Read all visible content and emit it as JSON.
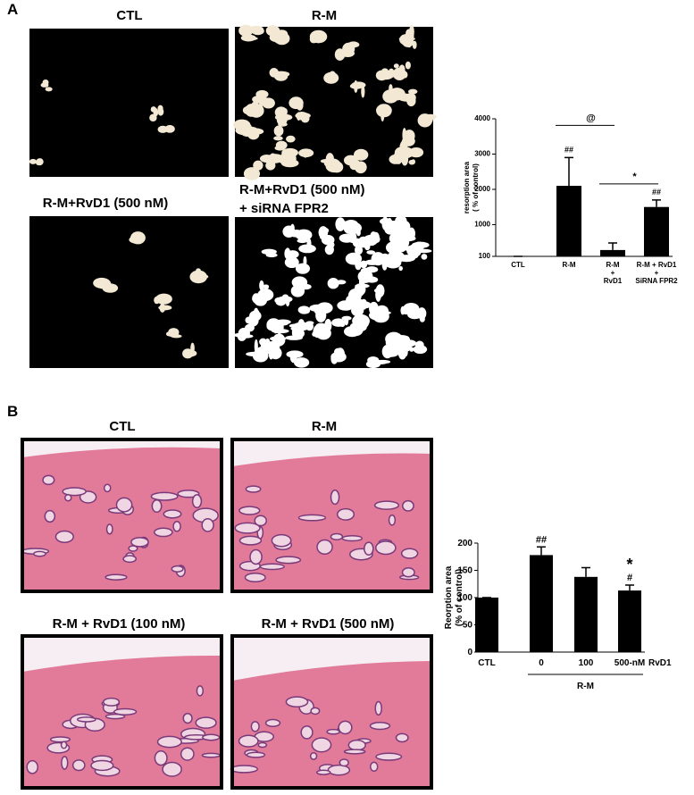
{
  "panels": {
    "A": {
      "label": "A",
      "images": [
        {
          "title": "CTL"
        },
        {
          "title": "R-M"
        },
        {
          "title": "R-M+RvD1 (500 nM)"
        },
        {
          "title": "R-M+RvD1 (500 nM)\n+ siRNA FPR2"
        }
      ]
    },
    "B": {
      "label": "B",
      "images": [
        {
          "title": "CTL"
        },
        {
          "title": "R-M"
        },
        {
          "title": "R-M + RvD1 (100 nM)"
        },
        {
          "title": "R-M + RvD1 (500 nM)"
        }
      ]
    }
  },
  "chart_data": [
    {
      "type": "bar",
      "y_label": "resorption area\n( % of control)",
      "categories": [
        "CTL",
        "R-M",
        "R-M\n+\nRvD1",
        "R-M + RvD1\n+\nSiRNA FPR2"
      ],
      "values": [
        100,
        2100,
        280,
        1500
      ],
      "errors": [
        0,
        800,
        200,
        200
      ],
      "color": "#000000",
      "ylim": [
        100,
        4000
      ],
      "yticks": [
        100,
        1000,
        2000,
        3000,
        4000
      ],
      "annotations": [
        {
          "text": "##",
          "category": 1
        },
        {
          "text": "##",
          "category": 3
        }
      ],
      "brackets": [
        {
          "text": "@",
          "from": 1,
          "to": 2
        },
        {
          "text": "*",
          "from": 2,
          "to": 3
        }
      ]
    },
    {
      "type": "bar",
      "y_label": "Reorption area\n(% of control)",
      "categories": [
        "CTL",
        "0",
        "100",
        "500-nM"
      ],
      "values": [
        100,
        178,
        138,
        113
      ],
      "errors": [
        0,
        15,
        17,
        10
      ],
      "color": "#000000",
      "ylim": [
        0,
        200
      ],
      "yticks": [
        0,
        50,
        100,
        150,
        200
      ],
      "annotations": [
        {
          "text": "##",
          "category": 1
        },
        {
          "text": "#",
          "category": 3
        },
        {
          "text": "*",
          "category": 3
        }
      ],
      "unit_label": "RvD1",
      "group_label": "R-M"
    }
  ]
}
